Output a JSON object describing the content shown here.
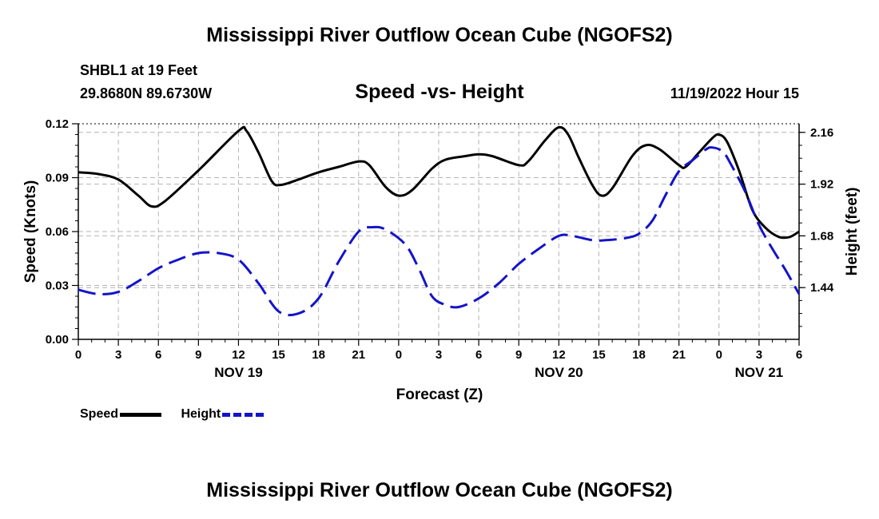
{
  "header": {
    "title": "Mississippi River Outflow Ocean Cube (NGOFS2)",
    "station": "SHBL1 at 19 Feet",
    "coords": "29.8680N  89.6730W",
    "subtitle": "Speed -vs- Height",
    "datetime": "11/19/2022 Hour 15"
  },
  "footer": {
    "title": "Mississippi River Outflow Ocean Cube (NGOFS2)"
  },
  "legend": {
    "speed_label": "Speed",
    "height_label": "Height"
  },
  "colors": {
    "speed": "#000000",
    "height": "#1414c8",
    "grid": "#b4b4b4"
  },
  "chart_data": {
    "type": "line",
    "xlabel": "Forecast (Z)",
    "ylabel_left": "Speed (Knots)",
    "ylabel_right": "Height (feet)",
    "x_range_hours": [
      0,
      54
    ],
    "x_ticks": [
      {
        "h": 0,
        "label": "0"
      },
      {
        "h": 3,
        "label": "3"
      },
      {
        "h": 6,
        "label": "6"
      },
      {
        "h": 9,
        "label": "9"
      },
      {
        "h": 12,
        "label": "12"
      },
      {
        "h": 15,
        "label": "15"
      },
      {
        "h": 18,
        "label": "18"
      },
      {
        "h": 21,
        "label": "21"
      },
      {
        "h": 24,
        "label": "0"
      },
      {
        "h": 27,
        "label": "3"
      },
      {
        "h": 30,
        "label": "6"
      },
      {
        "h": 33,
        "label": "9"
      },
      {
        "h": 36,
        "label": "12"
      },
      {
        "h": 39,
        "label": "15"
      },
      {
        "h": 42,
        "label": "18"
      },
      {
        "h": 45,
        "label": "21"
      },
      {
        "h": 48,
        "label": "0"
      },
      {
        "h": 51,
        "label": "3"
      },
      {
        "h": 54,
        "label": "6"
      }
    ],
    "day_labels": [
      {
        "h": 12,
        "label": "NOV 19"
      },
      {
        "h": 36,
        "label": "NOV 20"
      },
      {
        "h": 51,
        "label": "NOV 21"
      }
    ],
    "y_left_range": [
      0,
      0.12
    ],
    "y_left_ticks": [
      "0.00",
      "0.03",
      "0.06",
      "0.09",
      "0.12"
    ],
    "y_right_range": [
      1.2,
      2.2
    ],
    "y_right_ticks": [
      "1.44",
      "1.68",
      "1.92",
      "2.16"
    ],
    "series": [
      {
        "name": "Speed",
        "axis": "left",
        "points": [
          [
            0,
            0.093
          ],
          [
            1.5,
            0.092
          ],
          [
            3,
            0.089
          ],
          [
            4.5,
            0.08
          ],
          [
            5.5,
            0.074
          ],
          [
            6.5,
            0.077
          ],
          [
            9,
            0.094
          ],
          [
            12,
            0.116
          ],
          [
            12.6,
            0.116
          ],
          [
            13.5,
            0.104
          ],
          [
            14.5,
            0.088
          ],
          [
            15.2,
            0.086
          ],
          [
            16.5,
            0.089
          ],
          [
            18,
            0.093
          ],
          [
            19.5,
            0.096
          ],
          [
            21,
            0.099
          ],
          [
            21.8,
            0.097
          ],
          [
            23,
            0.085
          ],
          [
            24,
            0.08
          ],
          [
            25,
            0.083
          ],
          [
            26.5,
            0.095
          ],
          [
            27.5,
            0.1
          ],
          [
            29,
            0.102
          ],
          [
            30,
            0.103
          ],
          [
            31,
            0.102
          ],
          [
            33,
            0.097
          ],
          [
            33.7,
            0.099
          ],
          [
            35,
            0.111
          ],
          [
            36,
            0.118
          ],
          [
            36.7,
            0.114
          ],
          [
            37.5,
            0.101
          ],
          [
            38.5,
            0.086
          ],
          [
            39.2,
            0.08
          ],
          [
            40,
            0.084
          ],
          [
            41.5,
            0.102
          ],
          [
            42.5,
            0.108
          ],
          [
            43.5,
            0.106
          ],
          [
            45,
            0.097
          ],
          [
            45.5,
            0.096
          ],
          [
            46.5,
            0.104
          ],
          [
            47.5,
            0.112
          ],
          [
            48,
            0.114
          ],
          [
            48.6,
            0.11
          ],
          [
            49.5,
            0.094
          ],
          [
            50.5,
            0.072
          ],
          [
            51.5,
            0.062
          ],
          [
            52.5,
            0.057
          ],
          [
            53.3,
            0.057
          ],
          [
            54,
            0.06
          ]
        ]
      },
      {
        "name": "Height",
        "axis": "right",
        "points": [
          [
            0,
            1.43
          ],
          [
            1.5,
            1.41
          ],
          [
            3,
            1.42
          ],
          [
            4.5,
            1.47
          ],
          [
            6,
            1.53
          ],
          [
            7.5,
            1.57
          ],
          [
            9,
            1.6
          ],
          [
            10.5,
            1.6
          ],
          [
            12,
            1.57
          ],
          [
            13.5,
            1.46
          ],
          [
            15,
            1.33
          ],
          [
            16.5,
            1.32
          ],
          [
            18,
            1.39
          ],
          [
            19.5,
            1.56
          ],
          [
            21,
            1.7
          ],
          [
            22,
            1.72
          ],
          [
            23,
            1.71
          ],
          [
            24.5,
            1.64
          ],
          [
            25.5,
            1.53
          ],
          [
            26.5,
            1.4
          ],
          [
            27.5,
            1.36
          ],
          [
            28.5,
            1.35
          ],
          [
            30,
            1.39
          ],
          [
            31.5,
            1.46
          ],
          [
            33,
            1.55
          ],
          [
            34.5,
            1.62
          ],
          [
            36,
            1.68
          ],
          [
            37,
            1.68
          ],
          [
            38.5,
            1.66
          ],
          [
            39.5,
            1.66
          ],
          [
            41,
            1.67
          ],
          [
            42,
            1.69
          ],
          [
            43,
            1.75
          ],
          [
            44,
            1.87
          ],
          [
            45,
            1.98
          ],
          [
            46,
            2.03
          ],
          [
            47,
            2.08
          ],
          [
            47.5,
            2.09
          ],
          [
            48.3,
            2.07
          ],
          [
            49,
            2.0
          ],
          [
            50,
            1.88
          ],
          [
            51,
            1.73
          ],
          [
            52,
            1.62
          ],
          [
            53,
            1.52
          ],
          [
            54,
            1.41
          ]
        ]
      }
    ]
  }
}
